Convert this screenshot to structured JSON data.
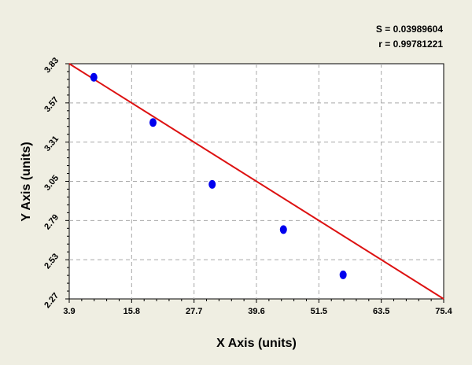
{
  "chart_data": {
    "type": "scatter",
    "title": "",
    "xlabel": "X Axis (units)",
    "ylabel": "Y Axis (units)",
    "xlim": [
      3.9,
      75.4
    ],
    "ylim": [
      2.27,
      3.83
    ],
    "x_ticks": [
      "3.9",
      "15.8",
      "27.7",
      "39.6",
      "51.5",
      "63.5",
      "75.4"
    ],
    "y_ticks": [
      "2.27",
      "2.53",
      "2.79",
      "3.05",
      "3.31",
      "3.57",
      "3.83"
    ],
    "grid": true,
    "stats": {
      "s_label": "S = 0.03989604",
      "r_label": "r = 0.99781221"
    },
    "series": [
      {
        "type": "scatter",
        "color": "#0000ee",
        "points": [
          {
            "x": 8.6,
            "y": 3.74
          },
          {
            "x": 19.9,
            "y": 3.44
          },
          {
            "x": 31.2,
            "y": 3.03
          },
          {
            "x": 44.8,
            "y": 2.73
          },
          {
            "x": 56.2,
            "y": 2.43
          }
        ]
      },
      {
        "type": "line",
        "color": "#dd1111",
        "points": [
          {
            "x": 3.9,
            "y": 3.83
          },
          {
            "x": 75.4,
            "y": 2.27
          }
        ]
      }
    ]
  }
}
